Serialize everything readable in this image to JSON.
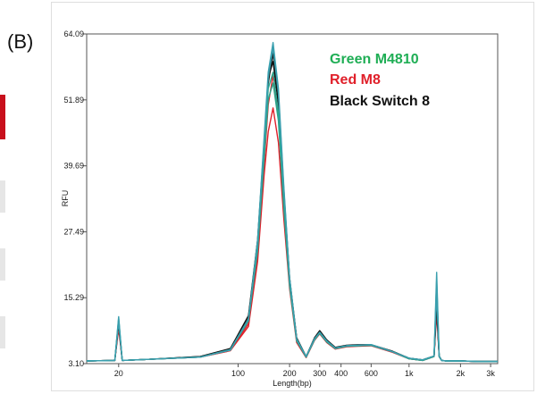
{
  "figure": {
    "panel_label": "(B)"
  },
  "chart_data": {
    "type": "line",
    "title": "",
    "xlabel": "Length(bp)",
    "ylabel": "RFU",
    "x_scale": "log",
    "xlim": [
      13,
      3300
    ],
    "ylim": [
      3.1,
      64.09
    ],
    "x_ticks": [
      {
        "value": 20,
        "label": "20"
      },
      {
        "value": 100,
        "label": "100"
      },
      {
        "value": 200,
        "label": "200"
      },
      {
        "value": 300,
        "label": "300"
      },
      {
        "value": 400,
        "label": "400"
      },
      {
        "value": 600,
        "label": "600"
      },
      {
        "value": 1000,
        "label": "1k"
      },
      {
        "value": 2000,
        "label": "2k"
      },
      {
        "value": 3000,
        "label": "3k"
      }
    ],
    "y_ticks": [
      {
        "value": 3.1,
        "label": "3.10"
      },
      {
        "value": 15.29,
        "label": "15.29"
      },
      {
        "value": 27.49,
        "label": "27.49"
      },
      {
        "value": 39.69,
        "label": "39.69"
      },
      {
        "value": 51.89,
        "label": "51.89"
      },
      {
        "value": 64.09,
        "label": "64.09"
      }
    ],
    "grid": false,
    "legend": {
      "placement": "top-right",
      "entries": [
        {
          "label": "Green M4810",
          "color": "#1fae55"
        },
        {
          "label": "Red M8",
          "color": "#e0202a"
        },
        {
          "label": "Black Switch 8",
          "color": "#111111"
        }
      ]
    },
    "series": [
      {
        "color": "#e0202a",
        "x": [
          13,
          19,
          20,
          21,
          30,
          60,
          90,
          115,
          130,
          142,
          150,
          160,
          172,
          185,
          200,
          220,
          250,
          280,
          300,
          330,
          370,
          430,
          500,
          600,
          800,
          1000,
          1200,
          1400,
          1450,
          1500,
          1550,
          1650,
          2000,
          2500,
          3300
        ],
        "y": [
          3.6,
          3.7,
          9.6,
          3.7,
          3.9,
          4.3,
          5.5,
          10,
          22,
          38,
          46,
          50.4,
          44,
          30,
          17,
          7,
          4.2,
          7.4,
          8.6,
          7,
          5.8,
          6.2,
          6.3,
          6.4,
          5.2,
          4,
          3.7,
          4.4,
          12.5,
          4.4,
          3.7,
          3.6,
          3.6,
          3.5,
          3.5
        ]
      },
      {
        "color": "#e0202a",
        "x": [
          13,
          19,
          20,
          21,
          30,
          60,
          90,
          115,
          130,
          142,
          150,
          160,
          172,
          185,
          200,
          220,
          250,
          280,
          300,
          330,
          370,
          430,
          500,
          600,
          800,
          1000,
          1200,
          1400,
          1450,
          1500,
          1550,
          1650,
          2000,
          2500,
          3300
        ],
        "y": [
          3.6,
          3.7,
          10.2,
          3.7,
          3.9,
          4.3,
          5.5,
          10.5,
          23,
          40,
          51,
          56.5,
          49,
          33,
          18,
          7.5,
          4.3,
          7.6,
          8.8,
          7.2,
          5.9,
          6.3,
          6.4,
          6.5,
          5.3,
          4,
          3.7,
          4.4,
          13.5,
          4.4,
          3.7,
          3.6,
          3.6,
          3.5,
          3.5
        ]
      },
      {
        "color": "#111111",
        "x": [
          13,
          19,
          20,
          21,
          30,
          60,
          90,
          115,
          130,
          142,
          150,
          160,
          172,
          185,
          200,
          220,
          250,
          280,
          300,
          330,
          370,
          430,
          500,
          600,
          800,
          1000,
          1200,
          1400,
          1450,
          1500,
          1550,
          1650,
          2000,
          2500,
          3300
        ],
        "y": [
          3.6,
          3.7,
          10.8,
          3.7,
          3.9,
          4.4,
          5.9,
          12,
          26,
          44,
          56,
          59,
          51,
          34,
          18.5,
          7.8,
          4.4,
          7.9,
          9.2,
          7.5,
          6.1,
          6.5,
          6.6,
          6.6,
          5.4,
          4.1,
          3.8,
          4.5,
          14.5,
          4.5,
          3.7,
          3.6,
          3.6,
          3.5,
          3.5
        ]
      },
      {
        "color": "#111111",
        "x": [
          13,
          19,
          20,
          21,
          30,
          60,
          90,
          115,
          130,
          142,
          150,
          160,
          172,
          185,
          200,
          220,
          250,
          280,
          300,
          330,
          370,
          430,
          500,
          600,
          800,
          1000,
          1200,
          1400,
          1450,
          1500,
          1550,
          1650,
          2000,
          2500,
          3300
        ],
        "y": [
          3.6,
          3.7,
          10.5,
          3.7,
          3.9,
          4.4,
          5.8,
          11.5,
          25,
          43,
          55,
          60.5,
          52,
          35,
          19,
          7.9,
          4.4,
          7.8,
          9.1,
          7.4,
          6,
          6.4,
          6.5,
          6.5,
          5.3,
          4.1,
          3.8,
          4.5,
          14,
          4.5,
          3.7,
          3.6,
          3.6,
          3.5,
          3.5
        ]
      },
      {
        "color": "#2aa58c",
        "x": [
          13,
          19,
          20,
          21,
          30,
          60,
          90,
          115,
          130,
          142,
          150,
          160,
          172,
          185,
          200,
          220,
          250,
          280,
          300,
          330,
          370,
          430,
          500,
          600,
          800,
          1000,
          1200,
          1400,
          1450,
          1500,
          1550,
          1650,
          2000,
          2500,
          3300
        ],
        "y": [
          3.6,
          3.7,
          11.5,
          3.7,
          3.9,
          4.3,
          5.6,
          11,
          24,
          41,
          52,
          55,
          48,
          32,
          17.5,
          7.3,
          4.3,
          7.5,
          8.7,
          7.1,
          5.9,
          6.3,
          6.4,
          6.5,
          5.3,
          4,
          3.7,
          4.4,
          18.5,
          4.4,
          3.7,
          3.6,
          3.6,
          3.5,
          3.5
        ]
      },
      {
        "color": "#2aa58c",
        "x": [
          13,
          19,
          20,
          21,
          30,
          60,
          90,
          115,
          130,
          142,
          150,
          160,
          172,
          185,
          200,
          220,
          250,
          280,
          300,
          330,
          370,
          430,
          500,
          600,
          800,
          1000,
          1200,
          1400,
          1450,
          1500,
          1550,
          1650,
          2000,
          2500,
          3300
        ],
        "y": [
          3.6,
          3.7,
          11,
          3.7,
          3.9,
          4.3,
          5.7,
          11.2,
          25,
          43,
          54,
          57,
          49.5,
          33,
          18,
          7.5,
          4.3,
          7.6,
          8.8,
          7.2,
          5.9,
          6.3,
          6.4,
          6.5,
          5.3,
          4,
          3.7,
          4.4,
          17,
          4.4,
          3.7,
          3.6,
          3.6,
          3.5,
          3.5
        ]
      },
      {
        "color": "#3a9fae",
        "x": [
          13,
          19,
          20,
          21,
          30,
          60,
          90,
          115,
          130,
          142,
          150,
          160,
          172,
          185,
          200,
          220,
          250,
          280,
          300,
          330,
          370,
          430,
          500,
          600,
          800,
          1000,
          1200,
          1400,
          1450,
          1500,
          1550,
          1650,
          2000,
          2500,
          3300
        ],
        "y": [
          3.6,
          3.7,
          11.8,
          3.7,
          3.9,
          4.3,
          5.6,
          11.3,
          26,
          45,
          57,
          62.5,
          54,
          36,
          19,
          7.7,
          4.4,
          7.7,
          8.9,
          7.3,
          6,
          6.4,
          6.5,
          6.6,
          5.3,
          4.1,
          3.8,
          4.5,
          20,
          4.5,
          3.7,
          3.6,
          3.6,
          3.5,
          3.5
        ]
      },
      {
        "color": "#3a9fae",
        "x": [
          13,
          19,
          20,
          21,
          30,
          60,
          90,
          115,
          130,
          142,
          150,
          160,
          172,
          185,
          200,
          220,
          250,
          280,
          300,
          330,
          370,
          430,
          500,
          600,
          800,
          1000,
          1200,
          1400,
          1450,
          1500,
          1550,
          1650,
          2000,
          2500,
          3300
        ],
        "y": [
          3.6,
          3.7,
          10.9,
          3.7,
          3.9,
          4.3,
          5.7,
          11.4,
          25.5,
          44,
          56,
          61.5,
          53,
          35.5,
          18.8,
          7.6,
          4.4,
          7.7,
          8.9,
          7.3,
          6,
          6.4,
          6.5,
          6.6,
          5.3,
          4.1,
          3.8,
          4.5,
          16,
          4.5,
          3.7,
          3.6,
          3.6,
          3.5,
          3.5
        ]
      }
    ]
  }
}
